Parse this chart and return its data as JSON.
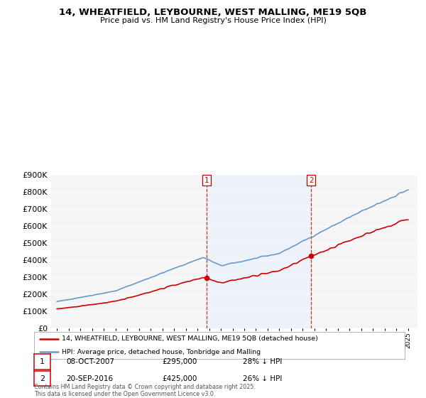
{
  "title_line1": "14, WHEATFIELD, LEYBOURNE, WEST MALLING, ME19 5QB",
  "title_line2": "Price paid vs. HM Land Registry's House Price Index (HPI)",
  "ylim": [
    0,
    900000
  ],
  "yticks": [
    0,
    100000,
    200000,
    300000,
    400000,
    500000,
    600000,
    700000,
    800000,
    900000
  ],
  "sale1_x": 2007.77,
  "sale1_date": "08-OCT-2007",
  "sale1_price": 295000,
  "sale1_pct": "28% ↓ HPI",
  "sale2_x": 2016.72,
  "sale2_date": "20-SEP-2016",
  "sale2_price": 425000,
  "sale2_pct": "26% ↓ HPI",
  "legend_house": "14, WHEATFIELD, LEYBOURNE, WEST MALLING, ME19 5QB (detached house)",
  "legend_hpi": "HPI: Average price, detached house, Tonbridge and Malling",
  "footer": "Contains HM Land Registry data © Crown copyright and database right 2025.\nThis data is licensed under the Open Government Licence v3.0.",
  "house_color": "#cc0000",
  "hpi_color": "#6699cc",
  "vline_color": "#cc0000",
  "shade_color": "#ddeeff",
  "background_color": "#ffffff",
  "plot_bg_color": "#f5f5f5"
}
